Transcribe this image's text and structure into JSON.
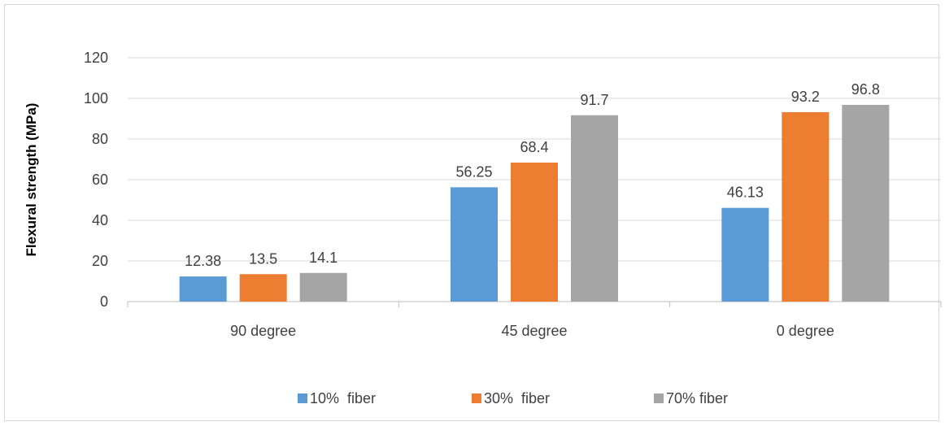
{
  "chart_data": {
    "type": "bar",
    "title": "",
    "xlabel": "",
    "ylabel": "Flexural  strength (MPa)",
    "categories": [
      "90 degree",
      "45 degree",
      "0 degree"
    ],
    "series": [
      {
        "name": "10%  fiber",
        "values": [
          12.38,
          56.25,
          46.13
        ],
        "labels": [
          "12.38",
          "56.25",
          "46.13"
        ],
        "color": "#5B9BD5"
      },
      {
        "name": "30%  fiber",
        "values": [
          13.5,
          68.4,
          93.2
        ],
        "labels": [
          "13.5",
          "68.4",
          "93.2"
        ],
        "color": "#ED7D31"
      },
      {
        "name": "70% fiber",
        "values": [
          14.1,
          91.7,
          96.8
        ],
        "labels": [
          "14.1",
          "91.7",
          "96.8"
        ],
        "color": "#A5A5A5"
      }
    ],
    "yticks": [
      "0",
      "20",
      "40",
      "60",
      "80",
      "100",
      "120"
    ],
    "ylim": [
      0,
      120
    ],
    "grid": true,
    "legend_position": "bottom"
  }
}
